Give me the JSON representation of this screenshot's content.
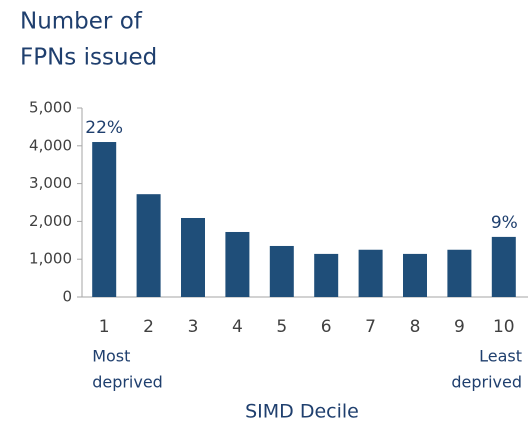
{
  "chart_data": {
    "type": "bar",
    "title": [
      "Number of",
      "FPNs issued"
    ],
    "x_label": "SIMD Decile",
    "categories": [
      "1",
      "2",
      "3",
      "4",
      "5",
      "6",
      "7",
      "8",
      "9",
      "10"
    ],
    "values": [
      4100,
      2720,
      2090,
      1720,
      1350,
      1140,
      1250,
      1140,
      1250,
      1590
    ],
    "bar_labels": [
      "22%",
      null,
      null,
      null,
      null,
      null,
      null,
      null,
      null,
      "9%"
    ],
    "category_notes": [
      [
        "Most",
        "deprived"
      ],
      null,
      null,
      null,
      null,
      null,
      null,
      null,
      null,
      [
        "Least",
        "deprived"
      ]
    ],
    "color": "#1f4e79",
    "ylim": [
      0,
      5000
    ],
    "yticks": [
      0,
      {
        "value": 1000,
        "label": "1,000"
      },
      {
        "value": 2000,
        "label": "2,000"
      },
      {
        "value": 3000,
        "label": "3,000"
      },
      {
        "value": 4000,
        "label": "4,000"
      },
      {
        "value": 5000,
        "label": "5,000"
      }
    ],
    "grid": false
  }
}
